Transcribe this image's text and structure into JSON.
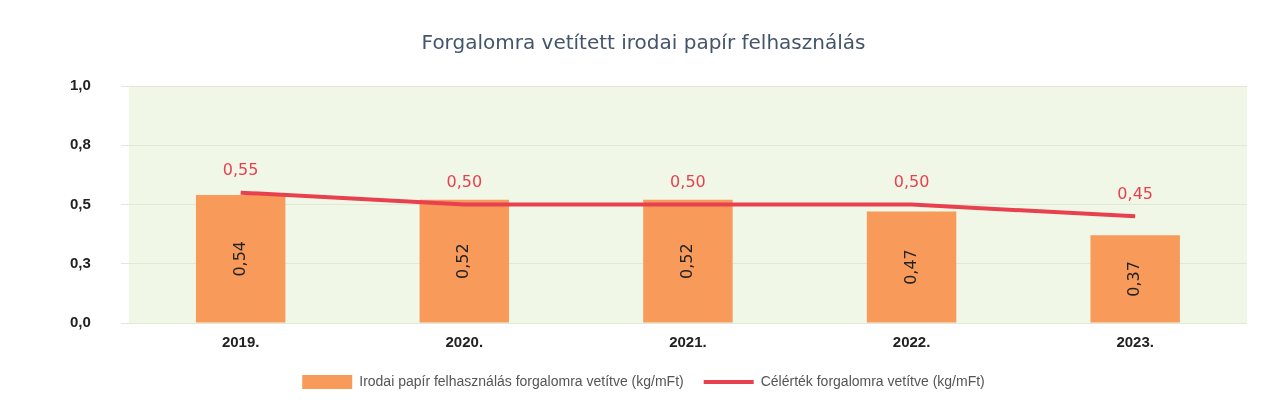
{
  "chart_data": {
    "type": "bar",
    "title": "Forgalomra vetített irodai papír felhasználás",
    "categories": [
      "2019.",
      "2020.",
      "2021.",
      "2022.",
      "2023."
    ],
    "series": [
      {
        "name": "Irodai papír felhasználás forgalomra vetítve (kg/mFt)",
        "color": "#f79a5a",
        "values": [
          0.54,
          0.52,
          0.52,
          0.47,
          0.37
        ],
        "value_labels": [
          "0,54",
          "0,52",
          "0,52",
          "0,47",
          "0,37"
        ]
      },
      {
        "name": "Célérték forgalomra vetítve (kg/mFt)",
        "type": "line",
        "color": "#e8404f",
        "values": [
          0.55,
          0.5,
          0.5,
          0.5,
          0.45
        ],
        "value_labels": [
          "0,55",
          "0,50",
          "0,50",
          "0,50",
          "0,45"
        ]
      }
    ],
    "ylim": [
      0,
      1
    ],
    "yticks": [
      {
        "value": 0,
        "label": "0,0"
      },
      {
        "value": 0.25,
        "label": "0,3"
      },
      {
        "value": 0.5,
        "label": "0,5"
      },
      {
        "value": 0.75,
        "label": "0,8"
      },
      {
        "value": 1,
        "label": "1,0"
      }
    ],
    "grid": "y",
    "legend": "bottom",
    "marker": "none"
  }
}
